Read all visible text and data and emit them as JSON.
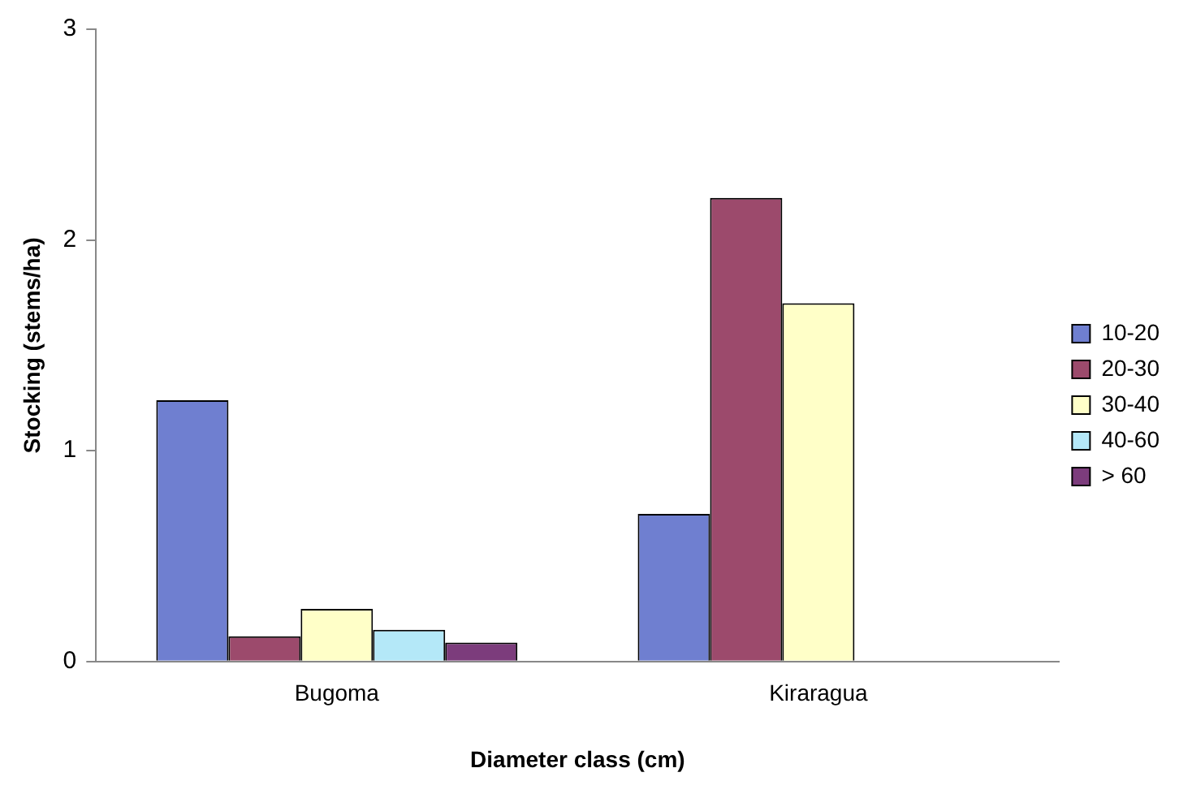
{
  "chart_data": {
    "type": "bar",
    "xlabel": "Diameter class (cm)",
    "ylabel": "Stocking (stems/ha)",
    "categories": [
      "Bugoma",
      "Kiraragua"
    ],
    "series": [
      {
        "name": "10-20",
        "color": "#6f7fd0",
        "values": [
          1.24,
          0.7
        ]
      },
      {
        "name": "20-30",
        "color": "#9c4a6c",
        "values": [
          0.12,
          2.2
        ]
      },
      {
        "name": "30-40",
        "color": "#ffffc8",
        "values": [
          0.25,
          1.7
        ]
      },
      {
        "name": "40-60",
        "color": "#b4e8f8",
        "values": [
          0.15,
          0
        ]
      },
      {
        "name": "> 60",
        "color": "#7c3c7c",
        "values": [
          0.09,
          0
        ]
      }
    ],
    "ylim": [
      0,
      3
    ],
    "yticks": [
      0,
      1,
      2,
      3
    ],
    "grid": false,
    "legend": "right"
  }
}
